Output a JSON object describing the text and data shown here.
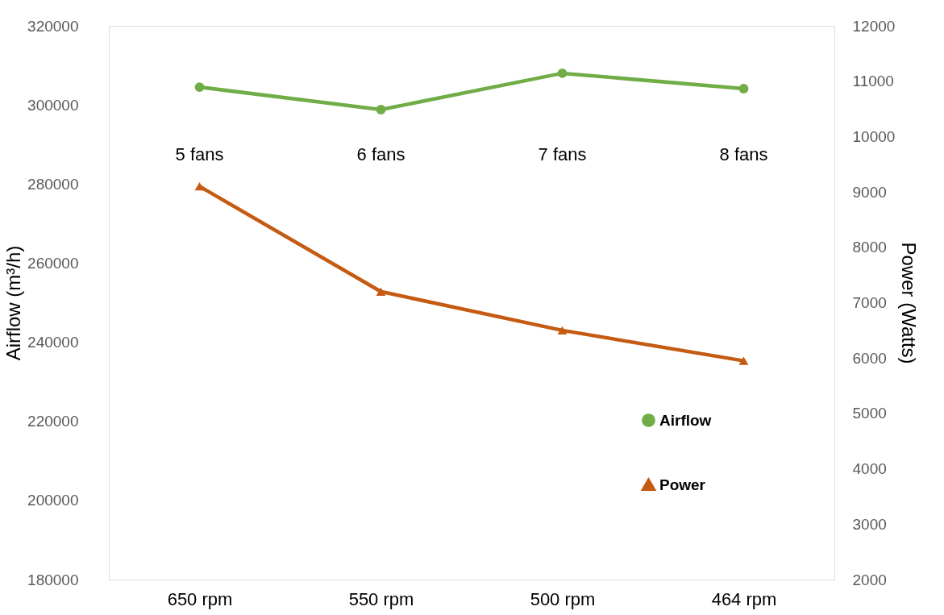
{
  "chart_data": {
    "type": "line",
    "categories": [
      "650 rpm",
      "550 rpm",
      "500 rpm",
      "464 rpm"
    ],
    "ylabel": "Airflow (m³/h)",
    "y2label": "Power (Watts)",
    "ylim": [
      180000,
      320000
    ],
    "yticks": [
      180000,
      200000,
      220000,
      240000,
      260000,
      280000,
      300000,
      320000
    ],
    "y2lim": [
      2000,
      12000
    ],
    "y2ticks": [
      2000,
      3000,
      4000,
      5000,
      6000,
      7000,
      8000,
      9000,
      10000,
      11000,
      12000
    ],
    "series": [
      {
        "name": "Airflow",
        "color": "#70ad47",
        "values": [
          304500,
          298800,
          308000,
          304100
        ],
        "marker": "circle"
      },
      {
        "name": "Power",
        "color": "#c55a11",
        "values": [
          9100,
          7200,
          6500,
          5950
        ],
        "marker": "triangle",
        "axis": "y2"
      }
    ],
    "annotations": [
      "5 fans",
      "6 fans",
      "7 fans",
      "8 fans"
    ],
    "legend": "bottom right",
    "grid": false,
    "line_style": "solid"
  }
}
